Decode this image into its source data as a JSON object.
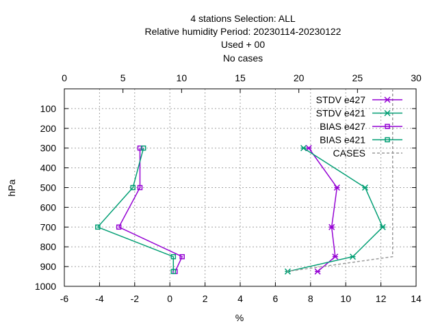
{
  "chart_data": {
    "type": "line",
    "title_lines": [
      "4 stations Selection: ALL",
      "Relative humidity  Period: 20230114-20230122",
      "Used   + 00",
      "No cases"
    ],
    "xlabel": "%",
    "ylabel": "hPa",
    "xlim": [
      -6,
      14
    ],
    "x_ticks": [
      "-6",
      "-4",
      "-2",
      "0",
      "2",
      "4",
      "6",
      "8",
      "10",
      "12",
      "14"
    ],
    "x2lim": [
      0,
      30
    ],
    "x2_ticks": [
      "0",
      "5",
      "10",
      "15",
      "20",
      "25",
      "30"
    ],
    "ylim": [
      1000,
      0
    ],
    "y_ticks": [
      "100",
      "200",
      "300",
      "400",
      "500",
      "600",
      "700",
      "800",
      "900",
      "1000"
    ],
    "grid": true,
    "legend_position": "top-right",
    "series": [
      {
        "name": "STDV e427",
        "color": "#9400d3",
        "marker": "x-star",
        "axis": "bottom",
        "x": [
          7.9,
          9.5,
          9.2,
          9.4,
          8.4
        ],
        "y": [
          300,
          500,
          700,
          850,
          925
        ]
      },
      {
        "name": "STDV e421",
        "color": "#009e73",
        "marker": "x-star",
        "axis": "bottom",
        "x": [
          7.6,
          11.1,
          12.1,
          10.4,
          6.7
        ],
        "y": [
          300,
          500,
          700,
          850,
          925
        ]
      },
      {
        "name": "BIAS e427",
        "color": "#9400d3",
        "marker": "open-square",
        "axis": "bottom",
        "x": [
          -1.7,
          -1.7,
          -2.9,
          0.7,
          0.3
        ],
        "y": [
          300,
          500,
          700,
          850,
          925
        ]
      },
      {
        "name": "BIAS e421",
        "color": "#009e73",
        "marker": "open-square",
        "axis": "bottom",
        "x": [
          -1.5,
          -2.1,
          -4.1,
          0.2,
          0.2
        ],
        "y": [
          300,
          500,
          700,
          850,
          925
        ]
      },
      {
        "name": "CASES",
        "color": "#999999",
        "marker": "none",
        "dashed": true,
        "axis": "top",
        "x": [
          28,
          28,
          28,
          28,
          28,
          22,
          19
        ],
        "y": [
          0,
          300,
          500,
          700,
          850,
          900,
          925
        ]
      }
    ]
  }
}
